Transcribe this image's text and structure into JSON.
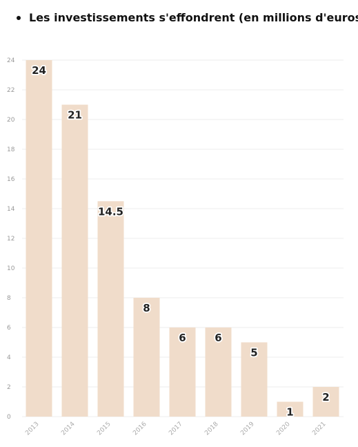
{
  "header": {
    "title": "Les investissements s'effondrent (en millions d'euros)"
  },
  "chart_data": {
    "type": "bar",
    "title": "Les investissements s'effondrent (en millions d'euros)",
    "categories": [
      "2013",
      "2014",
      "2015",
      "2016",
      "2017",
      "2018",
      "2019",
      "2020",
      "2021"
    ],
    "values": [
      24,
      21,
      14.5,
      8,
      6,
      6,
      5,
      1,
      2
    ],
    "value_labels": [
      "24",
      "21",
      "14.5",
      "8",
      "6",
      "6",
      "5",
      "1",
      "2"
    ],
    "yticks": [
      "0",
      "2",
      "4",
      "6",
      "8",
      "10",
      "12",
      "14",
      "16",
      "18",
      "20",
      "22",
      "24"
    ],
    "ylim": [
      0,
      24
    ],
    "xlabel": "",
    "ylabel": "",
    "grid": true,
    "bar_color": "#f0dcca",
    "gridline_color": "#ececec"
  }
}
